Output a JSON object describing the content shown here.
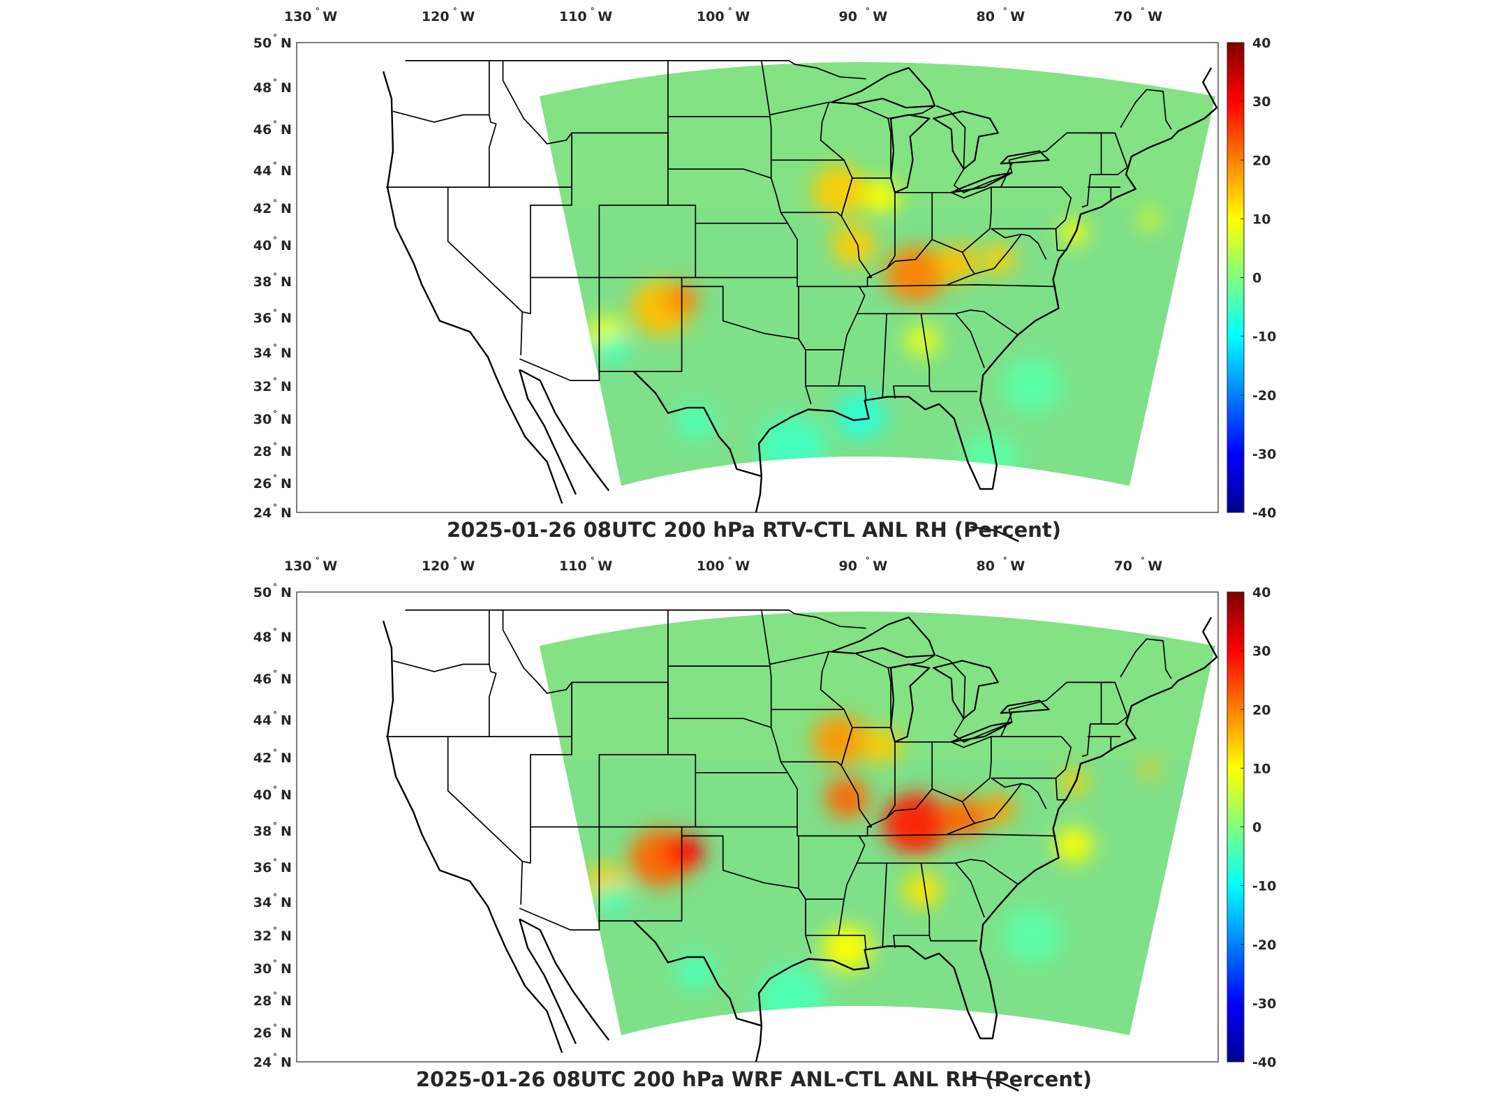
{
  "figure": {
    "panels": [
      {
        "title": "2025-01-26 08UTC 200 hPa RTV-CTL ANL RH (Percent)",
        "lon_ticks": [
          "130",
          "120",
          "110",
          "100",
          "90",
          "80",
          "70"
        ],
        "lon_suffix": "W",
        "lat_ticks": [
          "50",
          "48",
          "46",
          "44",
          "42",
          "40",
          "38",
          "36",
          "34",
          "32",
          "30",
          "28",
          "26",
          "24"
        ],
        "lat_suffix": "N",
        "colorbar_ticks": [
          "40",
          "30",
          "20",
          "10",
          "0",
          "-10",
          "-20",
          "-30",
          "-40"
        ]
      },
      {
        "title": "2025-01-26 08UTC 200 hPa WRF ANL-CTL ANL RH (Percent)",
        "lon_ticks": [
          "130",
          "120",
          "110",
          "100",
          "90",
          "80",
          "70"
        ],
        "lon_suffix": "W",
        "lat_ticks": [
          "50",
          "48",
          "46",
          "44",
          "42",
          "40",
          "38",
          "36",
          "34",
          "32",
          "30",
          "28",
          "26",
          "24"
        ],
        "lat_suffix": "N",
        "colorbar_ticks": [
          "40",
          "30",
          "20",
          "10",
          "0",
          "-10",
          "-20",
          "-30",
          "-40"
        ]
      }
    ],
    "colormap": [
      "#00008f",
      "#0000ff",
      "#0080ff",
      "#00ffff",
      "#80ff80",
      "#ffff00",
      "#ff8000",
      "#ff0000",
      "#800000"
    ],
    "field_background_color": "#7fe08a"
  },
  "chart_data": [
    {
      "type": "heatmap",
      "title": "2025-01-26 08UTC 200 hPa RTV-CTL ANL RH (Percent)",
      "variable": "RH difference",
      "units": "Percent",
      "x_range_lon": [
        -131,
        -64
      ],
      "y_range_lat": [
        24,
        50
      ],
      "color_range": [
        -40,
        40
      ],
      "domain": "continental United States",
      "hotspots": [
        {
          "region": "Kentucky / Tennessee",
          "value_approx": 20
        },
        {
          "region": "Iowa / Illinois",
          "value_approx": 15
        },
        {
          "region": "Texas Panhandle / New Mexico",
          "value_approx": 18
        },
        {
          "region": "Gulf of Mexico coast",
          "value_approx": -6
        }
      ]
    },
    {
      "type": "heatmap",
      "title": "2025-01-26 08UTC 200 hPa WRF ANL-CTL ANL RH (Percent)",
      "variable": "RH difference",
      "units": "Percent",
      "x_range_lon": [
        -131,
        -64
      ],
      "y_range_lat": [
        24,
        50
      ],
      "color_range": [
        -40,
        40
      ],
      "domain": "continental United States",
      "hotspots": [
        {
          "region": "Kentucky / Tennessee",
          "value_approx": 28
        },
        {
          "region": "Iowa / Illinois",
          "value_approx": 20
        },
        {
          "region": "Texas Panhandle / New Mexico",
          "value_approx": 30
        },
        {
          "region": "Louisiana / Mississippi coast",
          "value_approx": 10
        }
      ]
    }
  ]
}
